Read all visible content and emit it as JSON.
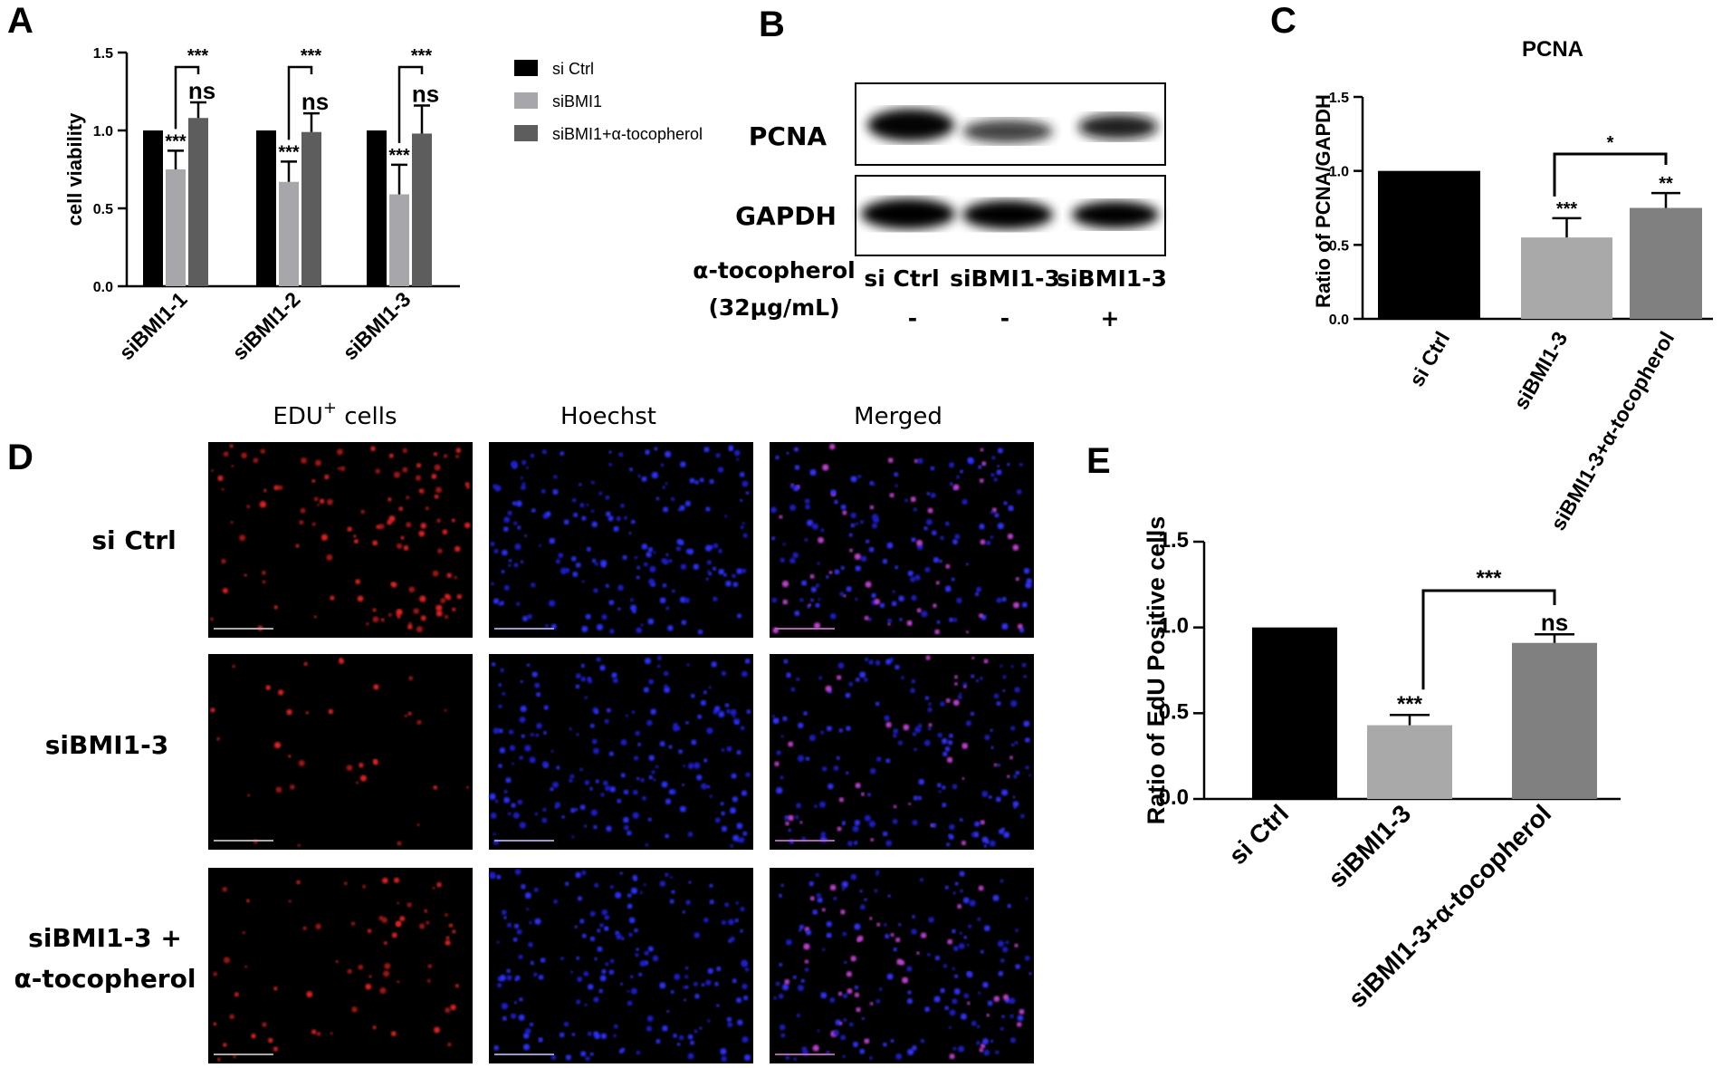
{
  "panels": {
    "A": "A",
    "B": "B",
    "C": "C",
    "D": "D",
    "E": "E"
  },
  "chart_data": [
    {
      "id": "A",
      "type": "bar",
      "title": "",
      "ylabel": "cell viability",
      "ylim": [
        0,
        1.5
      ],
      "yticks": [
        "0.0",
        "0.5",
        "1.0",
        "1.5"
      ],
      "categories": [
        "siBMI1-1",
        "siBMI1-2",
        "siBMI1-3"
      ],
      "series": [
        {
          "name": "si Ctrl",
          "color": "#000000",
          "values": [
            1.0,
            1.0,
            1.0
          ],
          "errors": [
            0,
            0,
            0
          ]
        },
        {
          "name": "siBMI1",
          "color": "#a6a6ab",
          "values": [
            0.75,
            0.67,
            0.59
          ],
          "errors": [
            0.12,
            0.13,
            0.19
          ]
        },
        {
          "name": "siBMI1+α-tocopherol",
          "color": "#5d5d5d",
          "values": [
            1.08,
            0.99,
            0.98
          ],
          "errors": [
            0.1,
            0.12,
            0.18
          ]
        }
      ],
      "significance": [
        "***",
        "***",
        "***"
      ],
      "ns": [
        "ns",
        "ns",
        "ns"
      ],
      "bracket": [
        "***",
        "***",
        "***"
      ]
    },
    {
      "id": "C",
      "type": "bar",
      "title": "PCNA",
      "ylabel": "Ratio of PCNA/GAPDH",
      "ylim": [
        0,
        1.5
      ],
      "yticks": [
        "0.0",
        "0.5",
        "1.0",
        "1.5"
      ],
      "categories": [
        "si Ctrl",
        "siBMI1-3",
        "siBMI1-3+α-tocopherol"
      ],
      "values": [
        1.0,
        0.55,
        0.75
      ],
      "errors": [
        0,
        0.13,
        0.1
      ],
      "colors": [
        "#000000",
        "#a9a9a9",
        "#808080"
      ],
      "significance": [
        "",
        "***",
        "**"
      ],
      "bracket": "*"
    },
    {
      "id": "E",
      "type": "bar",
      "title": "",
      "ylabel": "Ratio of EdU Positive cells",
      "ylim": [
        0,
        1.5
      ],
      "yticks": [
        "0.0",
        "0.5",
        "1.0",
        "1.5"
      ],
      "categories": [
        "si Ctrl",
        "siBMI1-3",
        "siBMI1-3+α-tocopherol"
      ],
      "values": [
        1.0,
        0.43,
        0.91
      ],
      "errors": [
        0,
        0.06,
        0.05
      ],
      "colors": [
        "#000000",
        "#a9a9a9",
        "#808080"
      ],
      "significance": [
        "",
        "***",
        "ns"
      ],
      "bracket": "***"
    }
  ],
  "blot": {
    "proteins": [
      "PCNA",
      "GAPDH"
    ],
    "treatment_label_1": "α-tocopherol",
    "treatment_label_2": "(32μg/mL)",
    "lanes": [
      "si Ctrl",
      "siBMI1-3",
      "siBMI1-3"
    ],
    "treatment": [
      "-",
      "-",
      "+"
    ]
  },
  "microscopy": {
    "columns": [
      "EDU",
      "Hoechst",
      "Merged"
    ],
    "column_superscript": "+",
    "column_suffix": "cells",
    "rows": [
      "si Ctrl",
      "siBMI1-3",
      "siBMI1-3 +",
      "α-tocopherol"
    ]
  }
}
